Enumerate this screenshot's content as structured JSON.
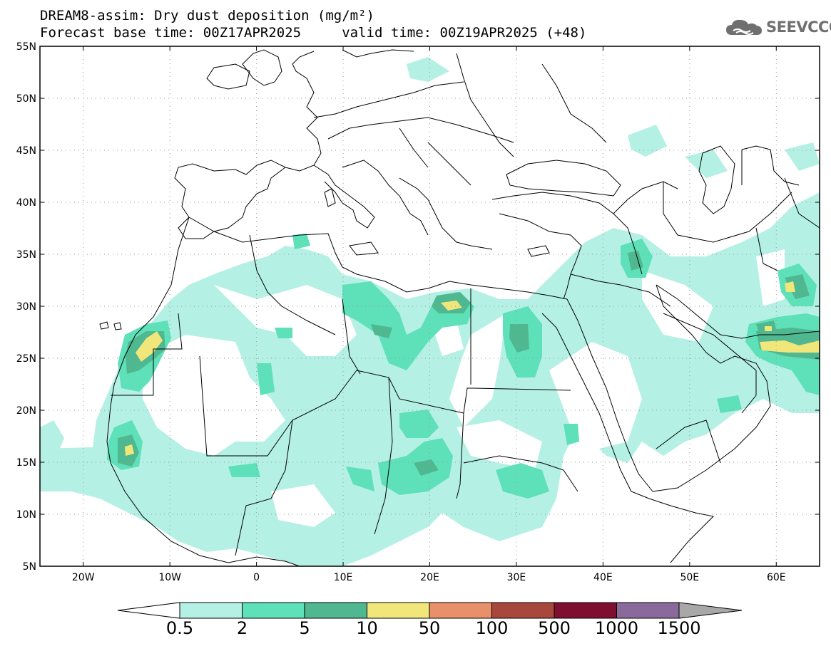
{
  "title": {
    "line1": "DREAM8-assim: Dry dust deposition (mg/m²)",
    "line2": "Forecast base time: 00Z17APR2025     valid time: 00Z19APR2025 (+48)"
  },
  "logo": {
    "text": "SEEVCCC",
    "icon": "cloud-icon"
  },
  "map": {
    "lon_range": [
      -25,
      65
    ],
    "lat_range": [
      5,
      55
    ],
    "lon_ticks": [
      {
        "value": -20,
        "label": "20W"
      },
      {
        "value": -10,
        "label": "10W"
      },
      {
        "value": 0,
        "label": "0"
      },
      {
        "value": 10,
        "label": "10E"
      },
      {
        "value": 20,
        "label": "20E"
      },
      {
        "value": 30,
        "label": "30E"
      },
      {
        "value": 40,
        "label": "40E"
      },
      {
        "value": 50,
        "label": "50E"
      },
      {
        "value": 60,
        "label": "60E"
      }
    ],
    "lat_ticks": [
      {
        "value": 55,
        "label": "55N"
      },
      {
        "value": 50,
        "label": "50N"
      },
      {
        "value": 45,
        "label": "45N"
      },
      {
        "value": 40,
        "label": "40N"
      },
      {
        "value": 35,
        "label": "35N"
      },
      {
        "value": 30,
        "label": "30N"
      },
      {
        "value": 25,
        "label": "25N"
      },
      {
        "value": 20,
        "label": "20N"
      },
      {
        "value": 15,
        "label": "15N"
      },
      {
        "value": 10,
        "label": "10N"
      },
      {
        "value": 5,
        "label": "5N"
      }
    ],
    "grid": "dotted"
  },
  "colorbar": {
    "colors": [
      "#b4f0e4",
      "#5ee0b8",
      "#50b890",
      "#f0e67a",
      "#e8906a",
      "#a8483c",
      "#7e0f30",
      "#8a6a9a",
      "#a8a8a8"
    ],
    "labels": [
      "0.5",
      "2",
      "5",
      "10",
      "50",
      "100",
      "500",
      "1000",
      "1500"
    ]
  },
  "legend_colors": {
    "c1": "#b4f0e4",
    "c2": "#5ee0b8",
    "c3": "#50b890",
    "c4": "#f0e67a"
  }
}
